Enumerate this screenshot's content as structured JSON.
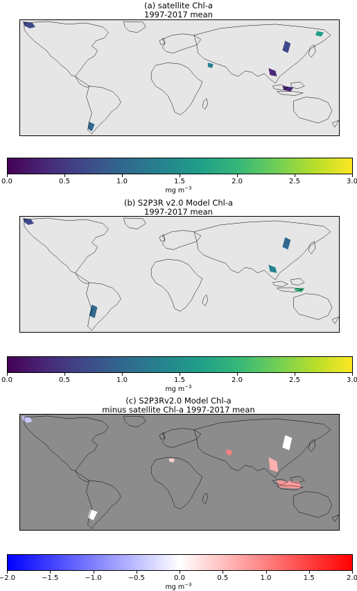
{
  "panels": [
    {
      "title_line1": "(a) satellite Chl-a",
      "title_line2": "1997-2017 mean",
      "background": "#e6e6e6",
      "colormap": "viridis",
      "colorbar": {
        "ticks": [
          "0.0",
          "0.5",
          "1.0",
          "1.5",
          "2.0",
          "2.5",
          "3.0"
        ],
        "min": 0.0,
        "max": 3.0,
        "unit_base": "mg m",
        "unit_exp": "−3"
      }
    },
    {
      "title_line1": "(b) S2P3R v2.0 Model Chl-a",
      "title_line2": "1997-2017 mean",
      "background": "#e6e6e6",
      "colormap": "viridis",
      "colorbar": {
        "ticks": [
          "0.0",
          "0.5",
          "1.0",
          "1.5",
          "2.0",
          "2.5",
          "3.0"
        ],
        "min": 0.0,
        "max": 3.0,
        "unit_base": "mg m",
        "unit_exp": "−3"
      }
    },
    {
      "title_line1": "(c) S2P3Rv2.0 Model Chl-a",
      "title_line2": "minus satellite Chl-a 1997-2017 mean",
      "background": "#8c8c8c",
      "colormap": "bwr",
      "colorbar": {
        "ticks": [
          "−2.0",
          "−1.5",
          "−1.0",
          "−0.5",
          "0.0",
          "0.5",
          "1.0",
          "1.5",
          "2.0"
        ],
        "min": -2.0,
        "max": 2.0,
        "unit_base": "mg m",
        "unit_exp": "−3"
      }
    }
  ]
}
